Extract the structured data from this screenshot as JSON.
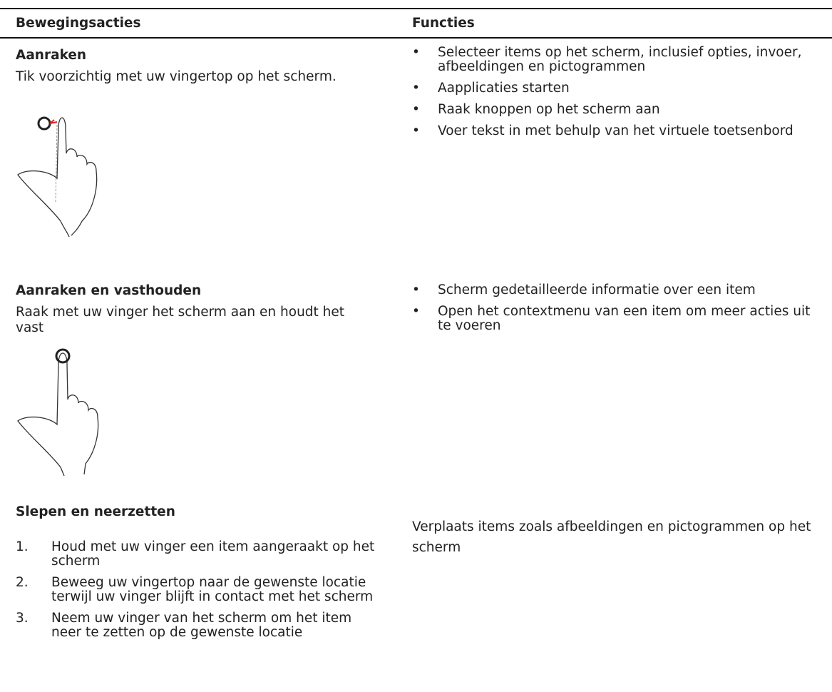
{
  "header": {
    "columns": [
      "Bewegingsacties",
      "Functies"
    ]
  },
  "table": {
    "rows": [
      {
        "title": "Aanraken",
        "description": "Tik voorzichtig met uw vingertop op het scherm.",
        "functions": [
          "Selecteer items op het scherm, inclusief opties, invoer, afbeeldingen en pictogrammen",
          "Aapplicaties starten",
          "Raak knoppen op het scherm aan",
          "Voer tekst in met behulp van het virtuele toetsenbord"
        ]
      },
      {
        "title": "Aanraken en vasthouden",
        "description": "Raak met uw vinger het scherm aan en houdt het vast",
        "functions": [
          "Scherm gedetailleerde informatie over een item",
          "Open het contextmenu van een item om meer acties uit te voeren"
        ]
      },
      {
        "title": "Slepen en neerzetten",
        "steps": [
          {
            "number": "1.",
            "text": "Houd met uw vinger een item aangeraakt op het scherm"
          },
          {
            "number": "2.",
            "text": "Beweeg uw vingertop naar de gewenste locatie terwijl uw vinger blijft in contact met het scherm"
          },
          {
            "number": "3.",
            "text": "Neem uw vinger van het scherm om het item neer te zetten op de gewenste locatie"
          }
        ],
        "function": "Verplaats items zoals afbeeldingen en pictogrammen op het scherm"
      }
    ]
  }
}
